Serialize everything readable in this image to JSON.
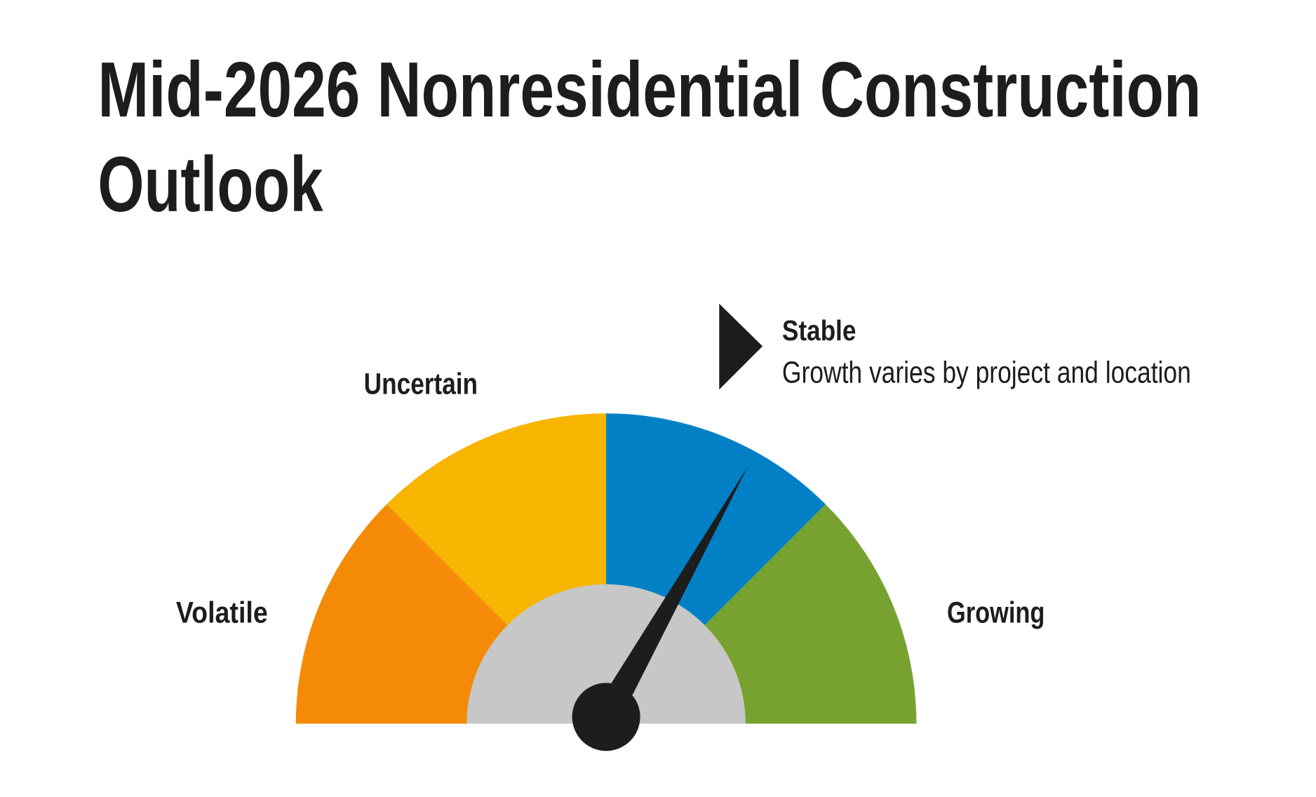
{
  "title": "Mid-2026 Nonresidential Construction Outlook",
  "gauge": {
    "segments": [
      {
        "label": "Volatile",
        "color": "#f58a07"
      },
      {
        "label": "Uncertain",
        "color": "#f8b500"
      },
      {
        "label": "Stable",
        "color": "#0280c6"
      },
      {
        "label": "Growing",
        "color": "#78a22f"
      }
    ],
    "indicator": {
      "label": "Stable",
      "description": "Growth varies by project and location"
    }
  }
}
